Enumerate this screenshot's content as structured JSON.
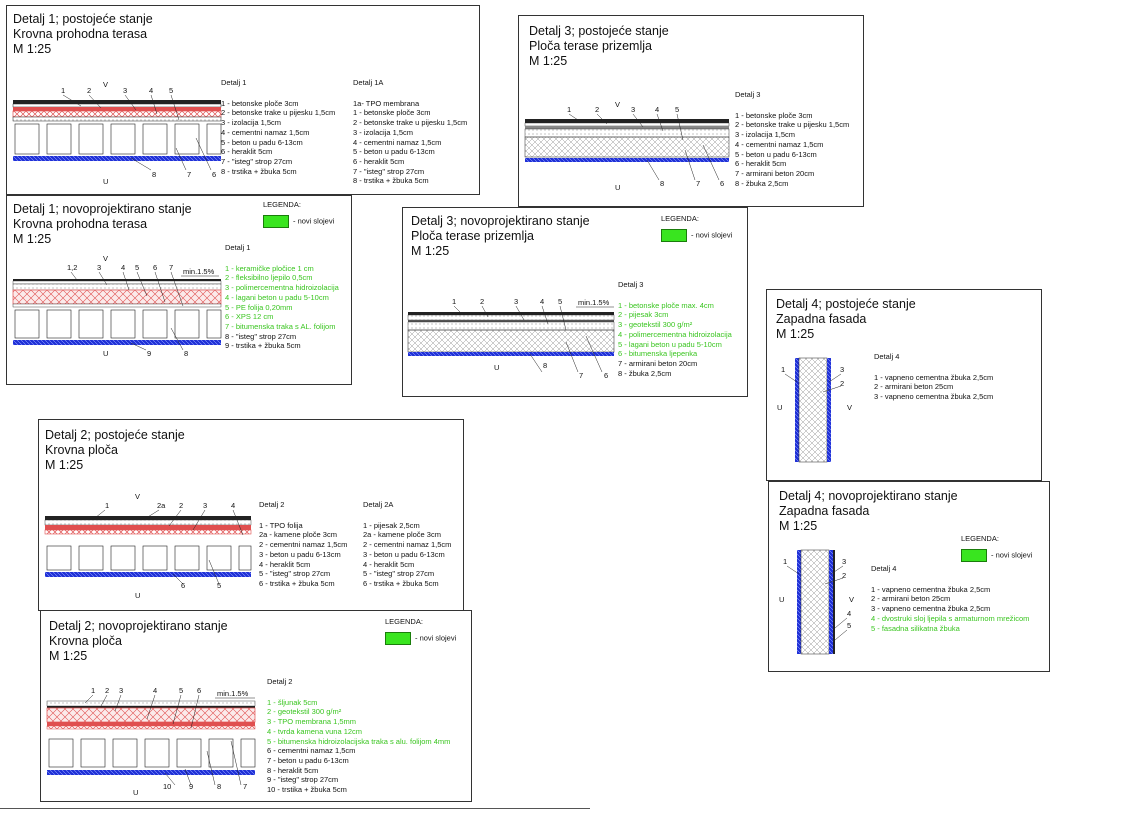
{
  "colors": {
    "green": "#39e51f",
    "blue": "#1e2fd6",
    "red": "#e05050",
    "hatch": "#9a9a9a"
  },
  "legend": {
    "title": "LEGENDA:",
    "label": "- novi slojevi"
  },
  "uv": {
    "u": "U",
    "v": "V"
  },
  "slope": "min.1.5%",
  "panels": {
    "d1_old": {
      "title": [
        "Detalj 1; postojeće stanje",
        "Krovna prohodna terasa",
        "M 1:25"
      ],
      "sectionA": "Detalj 1",
      "itemsA": [
        "1 - betonske ploče 3cm",
        "2 - betonske trake u pijesku 1,5cm",
        "3 - izolacija 1,5cm",
        "4 - cementni namaz 1,5cm",
        "5 - beton u padu 6-13cm",
        "6 - heraklit 5cm",
        "7 - \"isteg\" strop 27cm",
        "8 - trstika + žbuka 5cm"
      ],
      "sectionB": "Detalj 1A",
      "itemsB": [
        "1a- TPO membrana",
        "1 - betonske ploče 3cm",
        "2 - betonske trake u pijesku 1,5cm",
        "3 - izolacija 1,5cm",
        "4 - cementni namaz 1,5cm",
        "5 - beton u padu 6-13cm",
        "6 - heraklit 5cm",
        "7 - \"isteg\" strop 27cm",
        "8 - trstika + žbuka 5cm"
      ],
      "marks_top": [
        "1",
        "2",
        "3",
        "4",
        "5"
      ],
      "marks_bottom": [
        "8",
        "7",
        "6"
      ]
    },
    "d1_new": {
      "title": [
        "Detalj 1; novoprojektirano stanje",
        "Krovna prohodna terasa",
        "M 1:25"
      ],
      "section": "Detalj 1",
      "items_new": [
        "1 - keramičke pločice 1 cm",
        "2 - fleksibilno ljepilo 0,5cm",
        "3 - polimercementna hidroizolacija",
        "4 - lagani beton u padu 5-10cm",
        "5 - PE folija 0,20mm",
        "6 - XPS 12 cm",
        "7 - bitumenska traka s AL. folijom"
      ],
      "items_old": [
        "8 - \"isteg\" strop 27cm",
        "9 - trstika + žbuka 5cm"
      ],
      "marks_top": [
        "1,2",
        "3",
        "4",
        "5",
        "6",
        "7"
      ],
      "marks_bottom": [
        "9",
        "8"
      ]
    },
    "d3_old": {
      "title": [
        "Detalj 3; postojeće stanje",
        "Ploča terase prizemlja",
        "M 1:25"
      ],
      "section": "Detalj 3",
      "items": [
        "1 - betonske ploče 3cm",
        "2 - betonske trake u pijesku 1,5cm",
        "3 - izolacija 1,5cm",
        "4 - cementni namaz 1,5cm",
        "5 - beton u padu 6-13cm",
        "6 - heraklit 5cm",
        "7 - armirani beton 20cm",
        "8 - žbuka 2,5cm"
      ],
      "marks_top": [
        "1",
        "2",
        "3",
        "4",
        "5"
      ],
      "marks_bottom": [
        "8",
        "7",
        "6"
      ]
    },
    "d3_new": {
      "title": [
        "Detalj 3; novoprojektirano stanje",
        "Ploča terase prizemlja",
        "M 1:25"
      ],
      "section": "Detalj 3",
      "items_new": [
        "1 - betonske ploče max. 4cm",
        "2 - pijesak 3cm",
        "3 - geotekstil 300 g/m²",
        "4 - polimercementna hidroizolacija",
        "5 - lagani beton u padu 5-10cm",
        "6 - bitumenska ljepenka"
      ],
      "items_old": [
        "7 - armirani beton 20cm",
        "8 - žbuka 2,5cm"
      ],
      "marks_top": [
        "1",
        "2",
        "3",
        "4",
        "5"
      ],
      "marks_bottom": [
        "8",
        "7",
        "6"
      ]
    },
    "d4_old": {
      "title": [
        "Detalj 4; postojeće stanje",
        "Zapadna fasada",
        "M 1:25"
      ],
      "section": "Detalj 4",
      "items": [
        "1 - vapneno cementna žbuka 2,5cm",
        "2 - armirani beton 25cm",
        "3 - vapneno cementna žbuka 2,5cm"
      ],
      "marks": [
        "1",
        "3",
        "2"
      ]
    },
    "d4_new": {
      "title": [
        "Detalj 4; novoprojektirano stanje",
        "Zapadna fasada",
        "M 1:25"
      ],
      "section": "Detalj 4",
      "items_old": [
        "1 - vapneno cementna žbuka 2,5cm",
        "2 - armirani beton 25cm",
        "3 - vapneno cementna žbuka 2,5cm"
      ],
      "items_new": [
        "4 - dvostruki sloj ljepila s armaturnom mrežicom",
        "5 - fasadna silikatna žbuka"
      ],
      "marks": [
        "1",
        "3",
        "2",
        "4",
        "5"
      ]
    },
    "d2_old": {
      "title": [
        "Detalj 2; postojeće stanje",
        "Krovna ploča",
        "M 1:25"
      ],
      "sectionA": "Detalj 2",
      "itemsA": [
        "1 - TPO folija",
        "2a - kamene ploče 3cm",
        "2 - cementni namaz 1,5cm",
        "3 - beton u padu 6-13cm",
        "4 - heraklit 5cm",
        "5 - \"isteg\" strop 27cm",
        "6 - trstika + žbuka 5cm"
      ],
      "sectionB": "Detalj 2A",
      "itemsB": [
        "1 - pijesak 2,5cm",
        "2a - kamene ploče 3cm",
        "2 - cementni namaz 1,5cm",
        "3 - beton u padu 6-13cm",
        "4 - heraklit 5cm",
        "5 - \"isteg\" strop 27cm",
        "6 - trstika + žbuka 5cm"
      ],
      "marks_top": [
        "1",
        "2a",
        "2",
        "3",
        "4"
      ],
      "marks_bottom": [
        "6",
        "5"
      ]
    },
    "d2_new": {
      "title": [
        "Detalj 2; novoprojektirano stanje",
        "Krovna ploča",
        "M 1:25"
      ],
      "section": "Detalj 2",
      "items_new": [
        "1 - šljunak 5cm",
        "2 - geotekstil 300 g/m²",
        "3 - TPO membrana 1,5mm",
        "4 - tvrda kamena vuna 12cm",
        "5 - bitumenska hidroizolacijska traka s  alu. folijom 4mm"
      ],
      "items_old": [
        "6 - cementni namaz 1,5cm",
        "7 - beton u padu 6-13cm",
        "8 - heraklit 5cm",
        "9 - \"isteg\" strop 27cm",
        "10 - trstika + žbuka 5cm"
      ],
      "marks_top": [
        "1",
        "2",
        "3",
        "4",
        "5",
        "6"
      ],
      "marks_bottom": [
        "10",
        "9",
        "8",
        "7"
      ]
    }
  }
}
